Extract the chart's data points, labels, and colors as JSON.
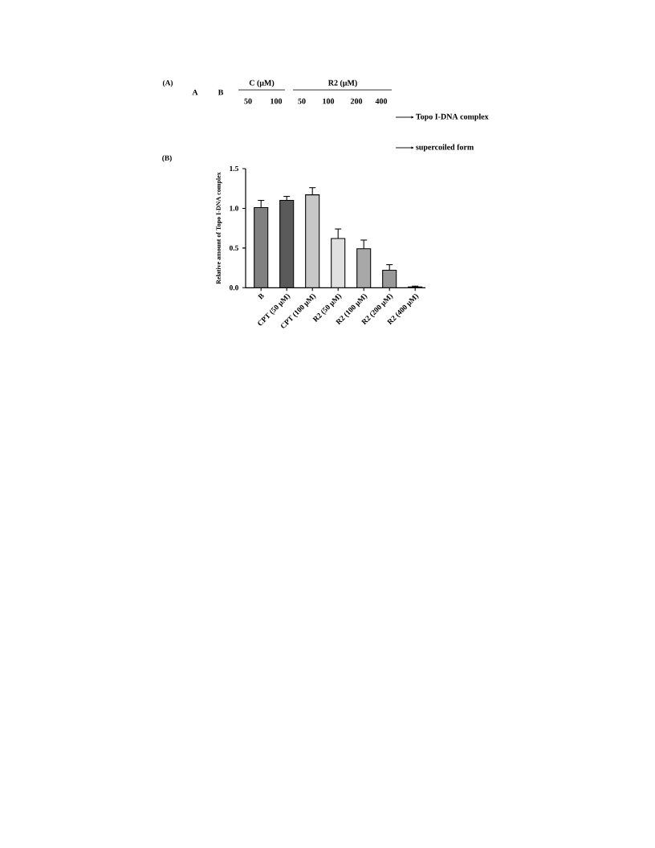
{
  "chart_data": {
    "type": "bar",
    "title": "(B)",
    "ylabel": "Relative amount of Topo I-DNA complex",
    "categories": [
      "B",
      "CPT (50 μM)",
      "CPT (100 μM)",
      "R2 (50 μM)",
      "R2 (100 μM)",
      "R2 (200 μM)",
      "R2 (400 μM)"
    ],
    "values": [
      1.01,
      1.1,
      1.17,
      0.62,
      0.49,
      0.22,
      0.01
    ],
    "errors": [
      [
        1.01,
        1.1
      ],
      [
        1.1,
        1.15
      ],
      [
        1.17,
        1.26
      ],
      [
        0.62,
        0.74
      ],
      [
        0.49,
        0.6
      ],
      [
        0.22,
        0.29
      ],
      [
        0.01,
        0.02
      ]
    ],
    "colors": [
      "#808080",
      "#5a5a5a",
      "#c8c8c8",
      "#e0e0e0",
      "#a8a8a8",
      "#989898",
      "#303030"
    ],
    "ylim": [
      0,
      1.5
    ],
    "yticks": [
      {
        "value": 0,
        "label": "0.0"
      },
      {
        "value": 0.5,
        "label": "0.5"
      },
      {
        "value": 1,
        "label": "1.0"
      },
      {
        "value": 1.5,
        "label": "1.5"
      }
    ],
    "annotations": [
      "(A)",
      "A",
      "B",
      "C (μM)",
      "R2 (μM)",
      "50",
      "100",
      "50",
      "100",
      "200",
      "400",
      "Topo I-DNA complex",
      "supercoiled form"
    ]
  }
}
